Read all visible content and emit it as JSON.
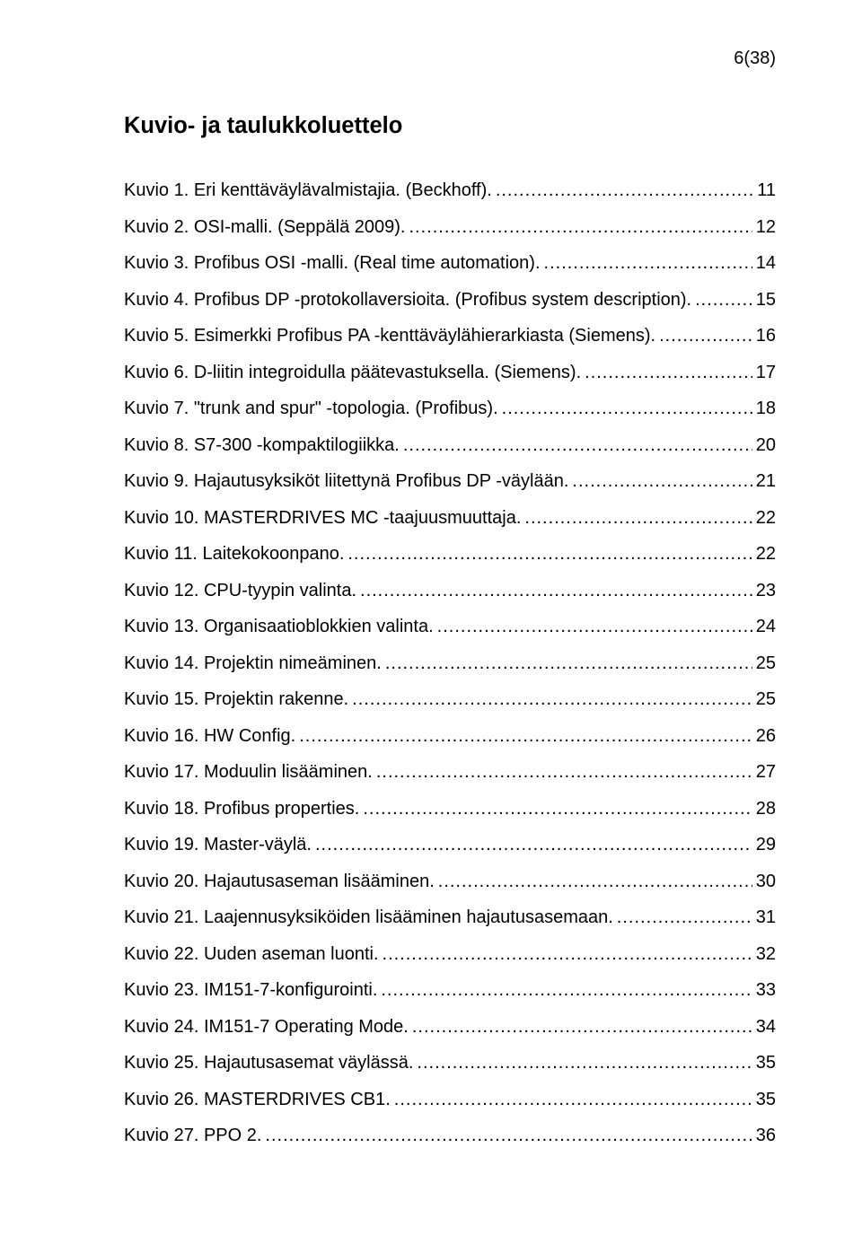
{
  "pageNumber": "6(38)",
  "heading": "Kuvio- ja taulukkoluettelo",
  "toc": [
    {
      "label": "Kuvio 1. Eri kenttäväylävalmistajia. (Beckhoff).",
      "page": "11"
    },
    {
      "label": "Kuvio 2. OSI-malli. (Seppälä 2009).",
      "page": "12"
    },
    {
      "label": "Kuvio 3. Profibus OSI -malli. (Real time automation).",
      "page": "14"
    },
    {
      "label": "Kuvio 4. Profibus DP -protokollaversioita. (Profibus system description).",
      "page": "15"
    },
    {
      "label": "Kuvio 5. Esimerkki Profibus PA -kenttäväylähierarkiasta (Siemens).",
      "page": "16"
    },
    {
      "label": "Kuvio 6. D-liitin integroidulla päätevastuksella. (Siemens).",
      "page": "17"
    },
    {
      "label": "Kuvio 7. \"trunk and spur\" -topologia. (Profibus).",
      "page": "18"
    },
    {
      "label": "Kuvio 8. S7-300 -kompaktilogiikka.",
      "page": "20"
    },
    {
      "label": "Kuvio 9. Hajautusyksiköt liitettynä Profibus DP -väylään.",
      "page": "21"
    },
    {
      "label": "Kuvio 10. MASTERDRIVES MC -taajuusmuuttaja.",
      "page": "22"
    },
    {
      "label": "Kuvio 11. Laitekokoonpano.",
      "page": "22"
    },
    {
      "label": "Kuvio 12. CPU-tyypin valinta.",
      "page": "23"
    },
    {
      "label": "Kuvio 13. Organisaatioblokkien valinta.",
      "page": "24"
    },
    {
      "label": "Kuvio 14. Projektin nimeäminen.",
      "page": "25"
    },
    {
      "label": "Kuvio 15. Projektin rakenne.",
      "page": "25"
    },
    {
      "label": "Kuvio 16. HW Config.",
      "page": "26"
    },
    {
      "label": "Kuvio 17. Moduulin lisääminen.",
      "page": "27"
    },
    {
      "label": "Kuvio 18. Profibus properties.",
      "page": "28"
    },
    {
      "label": "Kuvio 19. Master-väylä.",
      "page": "29"
    },
    {
      "label": "Kuvio 20. Hajautusaseman lisääminen.",
      "page": "30"
    },
    {
      "label": "Kuvio 21. Laajennusyksiköiden lisääminen hajautusasemaan.",
      "page": "31"
    },
    {
      "label": "Kuvio 22. Uuden aseman luonti.",
      "page": "32"
    },
    {
      "label": "Kuvio 23. IM151-7-konfigurointi.",
      "page": "33"
    },
    {
      "label": "Kuvio 24. IM151-7 Operating Mode.",
      "page": "34"
    },
    {
      "label": "Kuvio 25. Hajautusasemat väylässä.",
      "page": "35"
    },
    {
      "label": "Kuvio 26. MASTERDRIVES CB1.",
      "page": "35"
    },
    {
      "label": "Kuvio 27. PPO 2.",
      "page": "36"
    }
  ]
}
